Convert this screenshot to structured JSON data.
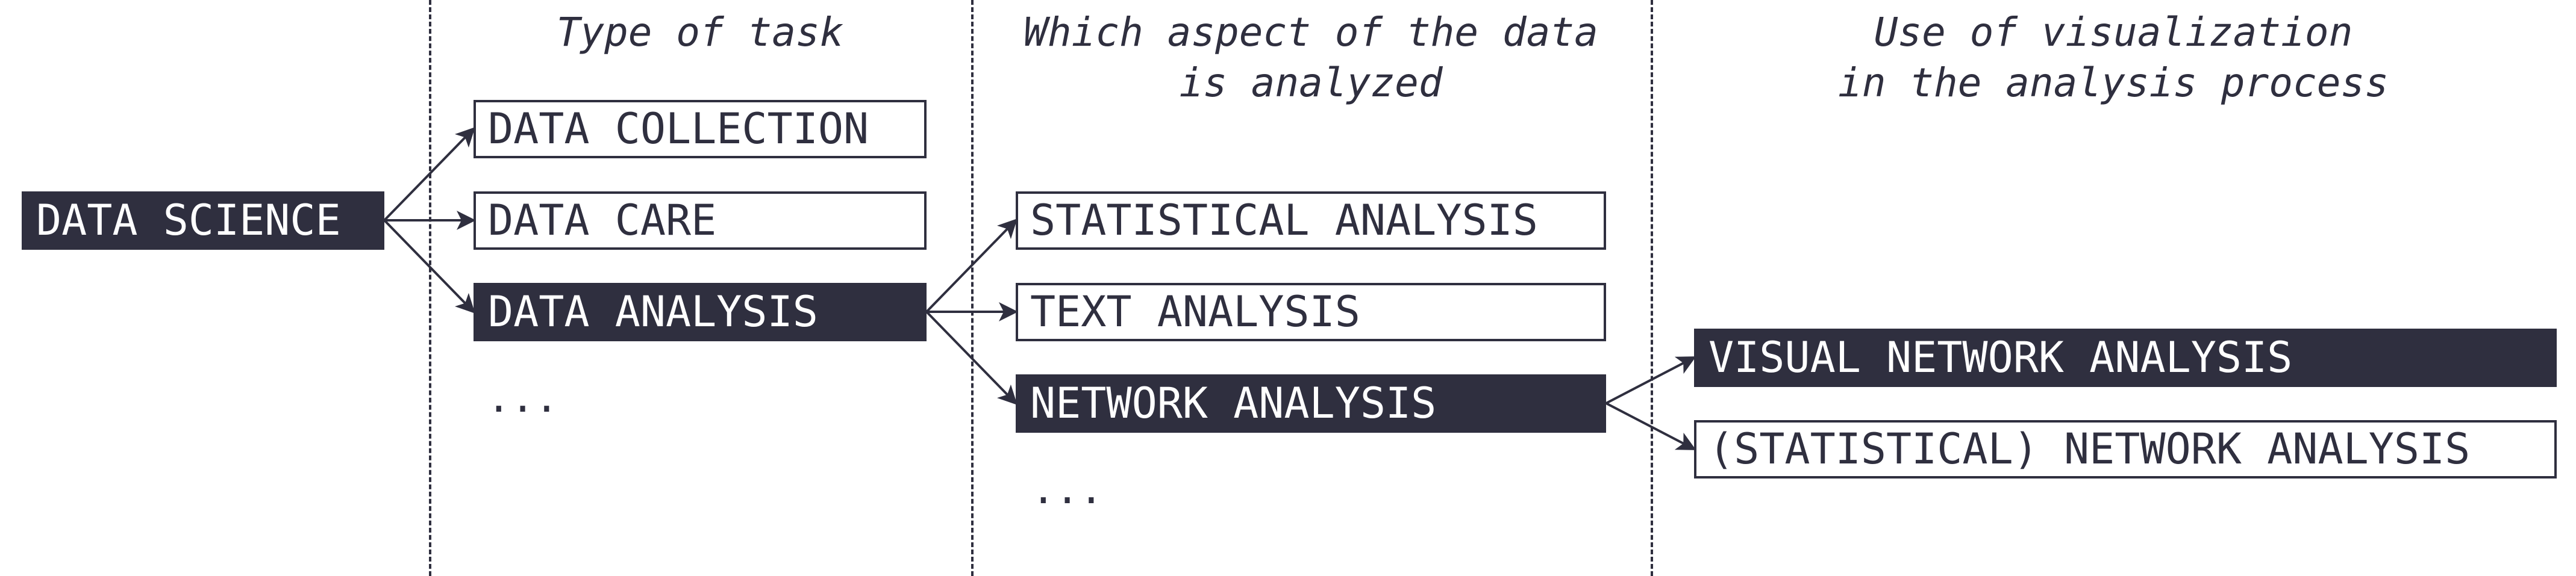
{
  "headers": {
    "task_type": "Type of task",
    "aspect_line1": "Which aspect of the data",
    "aspect_line2": "is analyzed",
    "visualization_line1": "Use of visualization",
    "visualization_line2": "in the analysis process"
  },
  "nodes": {
    "data_science": "DATA SCIENCE",
    "data_collection": "DATA COLLECTION",
    "data_care": "DATA CARE",
    "data_analysis": "DATA ANALYSIS",
    "task_more": "...",
    "statistical_analysis": "STATISTICAL ANALYSIS",
    "text_analysis": "TEXT ANALYSIS",
    "network_analysis": "NETWORK ANALYSIS",
    "aspect_more": "...",
    "visual_network_analysis": "VISUAL NETWORK ANALYSIS",
    "statistical_network_analysis": "(STATISTICAL) NETWORK ANALYSIS"
  },
  "colors": {
    "ink": "#2f2f3f",
    "background": "#ffffff"
  }
}
